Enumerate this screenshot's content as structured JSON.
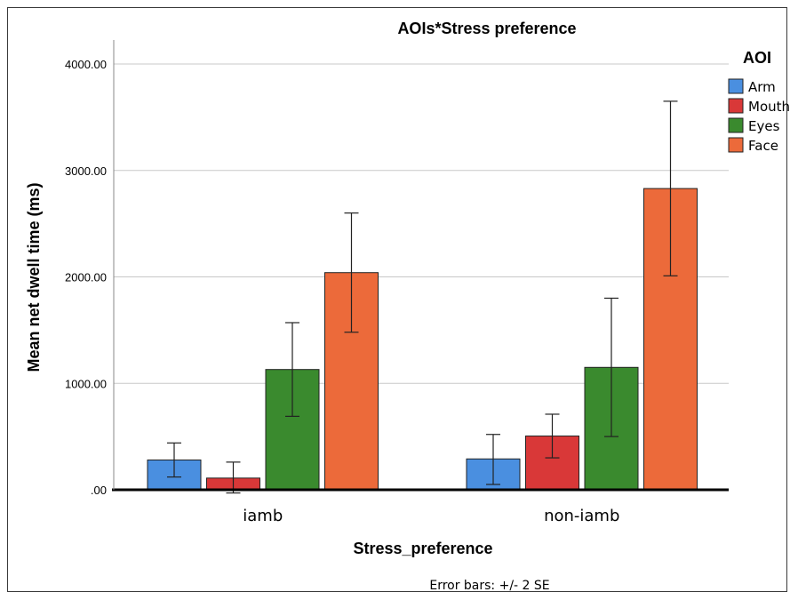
{
  "chart_data": {
    "type": "bar",
    "title": "AOIs*Stress preference",
    "xlabel": "Stress_preference",
    "ylabel": "Mean net dwell time (ms)",
    "ylim": [
      0,
      4000
    ],
    "yticks": [
      ".00",
      "1000.00",
      "2000.00",
      "3000.00",
      "4000.00"
    ],
    "categories": [
      "iamb",
      "non-iamb"
    ],
    "legend": {
      "title": "AOI",
      "placement": "right"
    },
    "series": [
      {
        "name": "Arm",
        "color": "#4a8fe0",
        "values": [
          280,
          290
        ],
        "error_low": [
          120,
          50
        ],
        "error_high": [
          440,
          520
        ]
      },
      {
        "name": "Mouth",
        "color": "#d93838",
        "values": [
          110,
          505
        ],
        "error_low": [
          -30,
          300
        ],
        "error_high": [
          260,
          710
        ]
      },
      {
        "name": "Eyes",
        "color": "#3a8a2e",
        "values": [
          1130,
          1150
        ],
        "error_low": [
          690,
          500
        ],
        "error_high": [
          1570,
          1800
        ]
      },
      {
        "name": "Face",
        "color": "#ec6a3a",
        "values": [
          2040,
          2830
        ],
        "error_low": [
          1480,
          2010
        ],
        "error_high": [
          2600,
          3650
        ]
      }
    ],
    "grid": true,
    "footnote": "Error bars: +/- 2 SE"
  }
}
